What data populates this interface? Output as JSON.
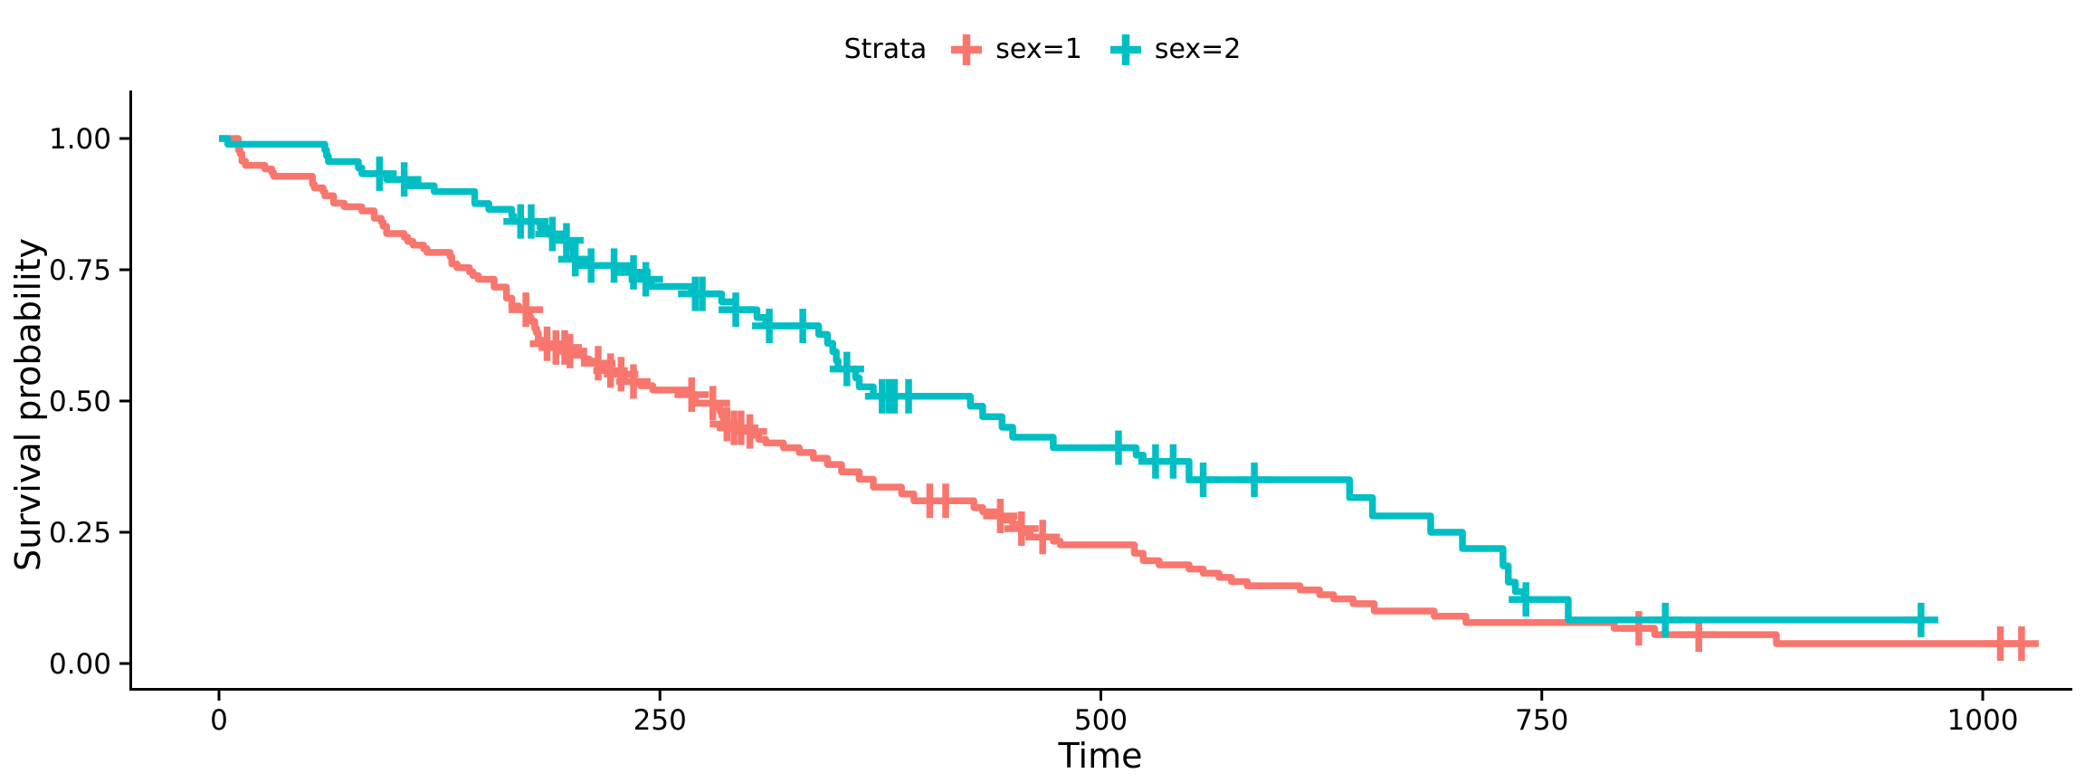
{
  "figure": {
    "background": "#FFFFFF"
  },
  "legend": {
    "title": "Strata",
    "items": [
      {
        "label": "sex=1",
        "color": "#F8766D"
      },
      {
        "label": "sex=2",
        "color": "#00BFC4"
      }
    ]
  },
  "axes": {
    "x": {
      "title": "Time",
      "tick_labels": [
        "0",
        "250",
        "500",
        "750",
        "1000"
      ]
    },
    "y": {
      "title": "Survival probability",
      "tick_labels": [
        "0.00",
        "0.25",
        "0.50",
        "0.75",
        "1.00"
      ]
    }
  },
  "chart_data": {
    "type": "line",
    "variant": "kaplan_meier_step_curve",
    "title": "",
    "xlabel": "Time",
    "ylabel": "Survival probability",
    "xlim": [
      0,
      1030
    ],
    "ylim": [
      0,
      1
    ],
    "x_ticks": [
      0,
      250,
      500,
      750,
      1000
    ],
    "y_ticks": [
      0,
      0.25,
      0.5,
      0.75,
      1
    ],
    "grid": false,
    "legend_position": "top",
    "legend_title": "Strata",
    "censor_marker": "plus",
    "series": [
      {
        "name": "sex=1",
        "color": "#F8766D",
        "end_time": 1022,
        "steps": [
          [
            0,
            1
          ],
          [
            11,
            0.978
          ],
          [
            12,
            0.971
          ],
          [
            13,
            0.957
          ],
          [
            15,
            0.949
          ],
          [
            26,
            0.942
          ],
          [
            30,
            0.935
          ],
          [
            31,
            0.928
          ],
          [
            53,
            0.913
          ],
          [
            54,
            0.906
          ],
          [
            59,
            0.899
          ],
          [
            60,
            0.891
          ],
          [
            65,
            0.877
          ],
          [
            71,
            0.87
          ],
          [
            81,
            0.862
          ],
          [
            88,
            0.848
          ],
          [
            92,
            0.841
          ],
          [
            93,
            0.833
          ],
          [
            95,
            0.819
          ],
          [
            105,
            0.812
          ],
          [
            107,
            0.804
          ],
          [
            110,
            0.797
          ],
          [
            116,
            0.79
          ],
          [
            118,
            0.783
          ],
          [
            131,
            0.775
          ],
          [
            132,
            0.761
          ],
          [
            135,
            0.754
          ],
          [
            142,
            0.746
          ],
          [
            144,
            0.739
          ],
          [
            147,
            0.732
          ],
          [
            156,
            0.717
          ],
          [
            163,
            0.696
          ],
          [
            166,
            0.681
          ],
          [
            170,
            0.674
          ],
          [
            175,
            0.667
          ],
          [
            176,
            0.659
          ],
          [
            177,
            0.652
          ],
          [
            179,
            0.638
          ],
          [
            180,
            0.63
          ],
          [
            181,
            0.616
          ],
          [
            183,
            0.609
          ],
          [
            189,
            0.602
          ],
          [
            197,
            0.595
          ],
          [
            202,
            0.587
          ],
          [
            207,
            0.58
          ],
          [
            210,
            0.576
          ],
          [
            212,
            0.572
          ],
          [
            218,
            0.565
          ],
          [
            222,
            0.558
          ],
          [
            223,
            0.551
          ],
          [
            229,
            0.544
          ],
          [
            230,
            0.537
          ],
          [
            239,
            0.529
          ],
          [
            246,
            0.521
          ],
          [
            267,
            0.512
          ],
          [
            269,
            0.504
          ],
          [
            270,
            0.496
          ],
          [
            283,
            0.488
          ],
          [
            284,
            0.48
          ],
          [
            285,
            0.472
          ],
          [
            286,
            0.464
          ],
          [
            288,
            0.456
          ],
          [
            291,
            0.449
          ],
          [
            301,
            0.442
          ],
          [
            303,
            0.435
          ],
          [
            306,
            0.427
          ],
          [
            310,
            0.42
          ],
          [
            320,
            0.411
          ],
          [
            329,
            0.402
          ],
          [
            337,
            0.391
          ],
          [
            345,
            0.379
          ],
          [
            353,
            0.365
          ],
          [
            363,
            0.351
          ],
          [
            371,
            0.336
          ],
          [
            387,
            0.323
          ],
          [
            394,
            0.31
          ],
          [
            428,
            0.297
          ],
          [
            433,
            0.289
          ],
          [
            442,
            0.281
          ],
          [
            444,
            0.273
          ],
          [
            450,
            0.265
          ],
          [
            455,
            0.257
          ],
          [
            457,
            0.249
          ],
          [
            460,
            0.241
          ],
          [
            473,
            0.233
          ],
          [
            477,
            0.226
          ],
          [
            519,
            0.21
          ],
          [
            524,
            0.196
          ],
          [
            533,
            0.188
          ],
          [
            550,
            0.18
          ],
          [
            558,
            0.172
          ],
          [
            567,
            0.164
          ],
          [
            574,
            0.156
          ],
          [
            583,
            0.148
          ],
          [
            613,
            0.14
          ],
          [
            624,
            0.131
          ],
          [
            632,
            0.123
          ],
          [
            643,
            0.114
          ],
          [
            655,
            0.1
          ],
          [
            689,
            0.09
          ],
          [
            707,
            0.078
          ],
          [
            791,
            0.067
          ],
          [
            814,
            0.055
          ],
          [
            883,
            0.038
          ]
        ],
        "censor_times": [
          174,
          186,
          191,
          196,
          199,
          215,
          222,
          228,
          235,
          268,
          280,
          288,
          292,
          296,
          301,
          403,
          412,
          443,
          455,
          467,
          805,
          839,
          1010,
          1022
        ]
      },
      {
        "name": "sex=2",
        "color": "#00BFC4",
        "end_time": 965,
        "steps": [
          [
            0,
            1
          ],
          [
            5,
            0.989
          ],
          [
            60,
            0.978
          ],
          [
            61,
            0.967
          ],
          [
            62,
            0.956
          ],
          [
            79,
            0.944
          ],
          [
            81,
            0.933
          ],
          [
            95,
            0.922
          ],
          [
            107,
            0.91
          ],
          [
            122,
            0.899
          ],
          [
            145,
            0.876
          ],
          [
            153,
            0.865
          ],
          [
            166,
            0.853
          ],
          [
            167,
            0.842
          ],
          [
            182,
            0.83
          ],
          [
            186,
            0.818
          ],
          [
            194,
            0.806
          ],
          [
            199,
            0.794
          ],
          [
            201,
            0.77
          ],
          [
            208,
            0.758
          ],
          [
            226,
            0.745
          ],
          [
            239,
            0.732
          ],
          [
            245,
            0.718
          ],
          [
            268,
            0.704
          ],
          [
            285,
            0.689
          ],
          [
            293,
            0.674
          ],
          [
            305,
            0.659
          ],
          [
            310,
            0.643
          ],
          [
            340,
            0.627
          ],
          [
            345,
            0.61
          ],
          [
            348,
            0.594
          ],
          [
            350,
            0.577
          ],
          [
            351,
            0.561
          ],
          [
            361,
            0.544
          ],
          [
            363,
            0.527
          ],
          [
            371,
            0.509
          ],
          [
            426,
            0.49
          ],
          [
            433,
            0.47
          ],
          [
            444,
            0.45
          ],
          [
            450,
            0.431
          ],
          [
            473,
            0.411
          ],
          [
            520,
            0.397
          ],
          [
            524,
            0.385
          ],
          [
            550,
            0.35
          ],
          [
            641,
            0.316
          ],
          [
            654,
            0.281
          ],
          [
            687,
            0.25
          ],
          [
            705,
            0.219
          ],
          [
            728,
            0.186
          ],
          [
            731,
            0.155
          ],
          [
            735,
            0.137
          ],
          [
            740,
            0.122
          ],
          [
            765,
            0.083
          ]
        ],
        "censor_times": [
          91,
          105,
          171,
          177,
          189,
          197,
          202,
          211,
          224,
          235,
          242,
          270,
          274,
          293,
          312,
          331,
          356,
          376,
          380,
          383,
          391,
          510,
          531,
          541,
          558,
          587,
          741,
          820,
          965
        ]
      }
    ]
  }
}
